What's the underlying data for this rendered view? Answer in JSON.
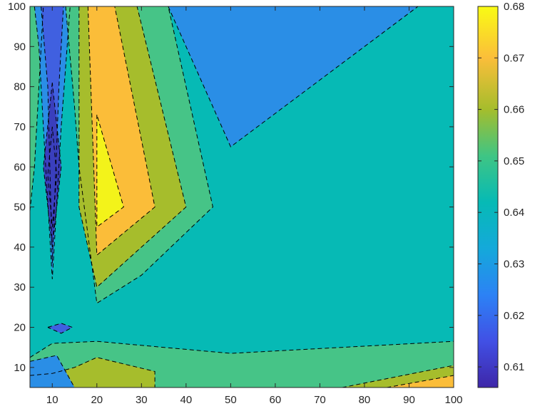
{
  "chart_data": {
    "type": "contour",
    "title": "",
    "xlabel": "",
    "ylabel": "",
    "xlim": [
      5,
      100
    ],
    "ylim": [
      5,
      100
    ],
    "x_ticks": [
      10,
      20,
      30,
      40,
      50,
      60,
      70,
      80,
      90,
      100
    ],
    "y_ticks": [
      10,
      20,
      30,
      40,
      50,
      60,
      70,
      80,
      90,
      100
    ],
    "x_tick_labels": [
      "10",
      "20",
      "30",
      "40",
      "50",
      "60",
      "70",
      "80",
      "90",
      "100"
    ],
    "y_tick_labels": [
      "10",
      "20",
      "30",
      "40",
      "50",
      "60",
      "70",
      "80",
      "90",
      "100"
    ],
    "colorbar": {
      "limits": [
        0.606,
        0.68
      ],
      "ticks": [
        0.61,
        0.62,
        0.63,
        0.64,
        0.65,
        0.66,
        0.67,
        0.68
      ],
      "tick_labels": [
        "0.61",
        "0.62",
        "0.63",
        "0.64",
        "0.65",
        "0.66",
        "0.67",
        "0.68"
      ],
      "colormap": "parula",
      "colormap_stops": [
        {
          "value": 0.606,
          "color": "#3e26a8"
        },
        {
          "value": 0.615,
          "color": "#4150e5"
        },
        {
          "value": 0.624,
          "color": "#2c82f5"
        },
        {
          "value": 0.633,
          "color": "#14a9da"
        },
        {
          "value": 0.642,
          "color": "#06bab5"
        },
        {
          "value": 0.651,
          "color": "#3fc584"
        },
        {
          "value": 0.66,
          "color": "#a5bd2c"
        },
        {
          "value": 0.67,
          "color": "#fbbe3a"
        },
        {
          "value": 0.68,
          "color": "#f9fb14"
        }
      ]
    },
    "levels": [
      {
        "name": "level-0.613",
        "value": 0.613,
        "fill": "#3a3fbd"
      },
      {
        "name": "level-0.620",
        "value": 0.62,
        "fill": "#4060e0"
      },
      {
        "name": "level-0.627",
        "value": 0.627,
        "fill": "#2a8ee6"
      },
      {
        "name": "level-0.634",
        "value": 0.634,
        "fill": "#0ab4cc"
      },
      {
        "name": "level-0.648",
        "value": 0.648,
        "fill": "#46c487"
      },
      {
        "name": "level-0.655",
        "value": 0.655,
        "fill": "#a6bd2c"
      },
      {
        "name": "level-0.664",
        "value": 0.664,
        "fill": "#fbbd39"
      },
      {
        "name": "level-0.672",
        "value": 0.672,
        "fill": "#f3f31a"
      }
    ],
    "background_fill": "#06bab5",
    "regions": [
      {
        "level": "level-0.648",
        "points": [
          [
            5,
            5
          ],
          [
            5,
            12.5
          ],
          [
            10,
            16
          ],
          [
            20,
            16.5
          ],
          [
            50,
            13.5
          ],
          [
            100,
            16.5
          ],
          [
            100,
            5
          ]
        ]
      },
      {
        "level": "level-0.655",
        "points": [
          [
            5,
            5
          ],
          [
            5,
            8
          ],
          [
            10,
            8.5
          ],
          [
            15,
            10
          ],
          [
            20,
            12.5
          ],
          [
            33,
            9
          ],
          [
            33,
            5
          ]
        ]
      },
      {
        "level": "level-0.655",
        "points": [
          [
            75,
            5
          ],
          [
            100,
            10.5
          ],
          [
            100,
            5
          ]
        ]
      },
      {
        "level": "level-0.664",
        "points": [
          [
            85,
            5
          ],
          [
            100,
            8
          ],
          [
            100,
            5
          ]
        ]
      },
      {
        "level": "level-0.627",
        "points": [
          [
            5,
            5
          ],
          [
            5,
            11.5
          ],
          [
            11,
            13
          ],
          [
            15,
            5
          ]
        ]
      },
      {
        "level": "level-0.620",
        "points": [
          [
            9,
            20
          ],
          [
            12,
            21
          ],
          [
            14.5,
            20
          ],
          [
            12,
            18.5
          ]
        ]
      },
      {
        "level": "level-0.648",
        "points": [
          [
            5,
            100
          ],
          [
            5,
            49
          ],
          [
            6,
            60
          ],
          [
            8,
            100
          ]
        ]
      },
      {
        "level": "level-0.627",
        "points": [
          [
            6,
            100
          ],
          [
            7,
            90
          ],
          [
            8,
            70
          ],
          [
            10,
            32
          ],
          [
            12,
            70
          ],
          [
            14,
            100
          ]
        ]
      },
      {
        "level": "level-0.620",
        "points": [
          [
            7.5,
            100
          ],
          [
            9,
            80
          ],
          [
            10,
            36
          ],
          [
            11.5,
            80
          ],
          [
            12.5,
            100
          ]
        ]
      },
      {
        "level": "level-0.613",
        "points": [
          [
            10,
            81
          ],
          [
            8,
            60
          ],
          [
            10,
            40
          ],
          [
            12,
            60
          ]
        ]
      },
      {
        "level": "level-0.613",
        "points": [
          [
            10,
            70
          ],
          [
            9,
            58
          ],
          [
            10,
            45
          ],
          [
            11,
            58
          ]
        ]
      },
      {
        "level": "level-0.648",
        "points": [
          [
            13,
            100
          ],
          [
            15,
            75
          ],
          [
            16,
            60
          ],
          [
            20,
            26
          ],
          [
            30,
            33
          ],
          [
            46,
            50
          ],
          [
            36,
            100
          ]
        ]
      },
      {
        "level": "level-0.655",
        "points": [
          [
            16,
            100
          ],
          [
            16,
            50
          ],
          [
            20,
            30
          ],
          [
            30,
            40
          ],
          [
            40,
            50
          ],
          [
            29,
            100
          ]
        ]
      },
      {
        "level": "level-0.664",
        "points": [
          [
            18,
            100
          ],
          [
            20,
            38
          ],
          [
            33,
            50
          ],
          [
            24,
            100
          ]
        ]
      },
      {
        "level": "level-0.672",
        "points": [
          [
            20,
            73
          ],
          [
            20,
            45
          ],
          [
            26,
            50
          ]
        ]
      },
      {
        "level": "level-0.627",
        "points": [
          [
            36,
            100
          ],
          [
            50,
            65
          ],
          [
            92,
            100
          ]
        ]
      }
    ],
    "contour_lines": [
      {
        "points": [
          [
            5,
            12.5
          ],
          [
            10,
            16
          ],
          [
            20,
            16.5
          ],
          [
            50,
            13.5
          ],
          [
            100,
            16.5
          ]
        ]
      },
      {
        "points": [
          [
            5,
            8
          ],
          [
            10,
            8.5
          ],
          [
            15,
            10
          ],
          [
            20,
            12.5
          ],
          [
            33,
            9
          ],
          [
            33,
            5
          ]
        ]
      },
      {
        "points": [
          [
            75,
            5
          ],
          [
            100,
            10.5
          ]
        ]
      },
      {
        "points": [
          [
            85,
            5
          ],
          [
            100,
            8
          ]
        ]
      },
      {
        "points": [
          [
            5,
            11.5
          ],
          [
            11,
            13
          ],
          [
            15,
            5
          ]
        ]
      },
      {
        "points": [
          [
            9,
            20
          ],
          [
            12,
            21
          ],
          [
            14.5,
            20
          ],
          [
            12,
            18.5
          ],
          [
            9,
            20
          ]
        ]
      },
      {
        "points": [
          [
            5,
            49
          ],
          [
            6,
            60
          ],
          [
            8,
            100
          ]
        ]
      },
      {
        "points": [
          [
            6,
            100
          ],
          [
            7,
            90
          ],
          [
            8,
            70
          ],
          [
            10,
            32
          ],
          [
            12,
            70
          ],
          [
            14,
            100
          ]
        ]
      },
      {
        "points": [
          [
            7.5,
            100
          ],
          [
            9,
            80
          ],
          [
            10,
            36
          ],
          [
            11.5,
            80
          ],
          [
            12.5,
            100
          ]
        ]
      },
      {
        "points": [
          [
            10,
            81
          ],
          [
            8,
            60
          ],
          [
            10,
            40
          ],
          [
            12,
            60
          ],
          [
            10,
            81
          ]
        ]
      },
      {
        "points": [
          [
            10,
            70
          ],
          [
            9,
            58
          ],
          [
            10,
            45
          ],
          [
            11,
            58
          ],
          [
            10,
            70
          ]
        ]
      },
      {
        "points": [
          [
            13,
            100
          ],
          [
            15,
            75
          ],
          [
            16,
            60
          ],
          [
            20,
            26
          ],
          [
            30,
            33
          ],
          [
            46,
            50
          ],
          [
            36,
            100
          ]
        ]
      },
      {
        "points": [
          [
            16,
            100
          ],
          [
            16,
            50
          ],
          [
            20,
            30
          ],
          [
            30,
            40
          ],
          [
            40,
            50
          ],
          [
            29,
            100
          ]
        ]
      },
      {
        "points": [
          [
            18,
            100
          ],
          [
            20,
            38
          ],
          [
            33,
            50
          ],
          [
            24,
            100
          ]
        ]
      },
      {
        "points": [
          [
            20,
            73
          ],
          [
            20,
            45
          ],
          [
            26,
            50
          ],
          [
            20,
            73
          ]
        ]
      },
      {
        "points": [
          [
            36,
            100
          ],
          [
            50,
            65
          ],
          [
            92,
            100
          ]
        ]
      }
    ]
  }
}
